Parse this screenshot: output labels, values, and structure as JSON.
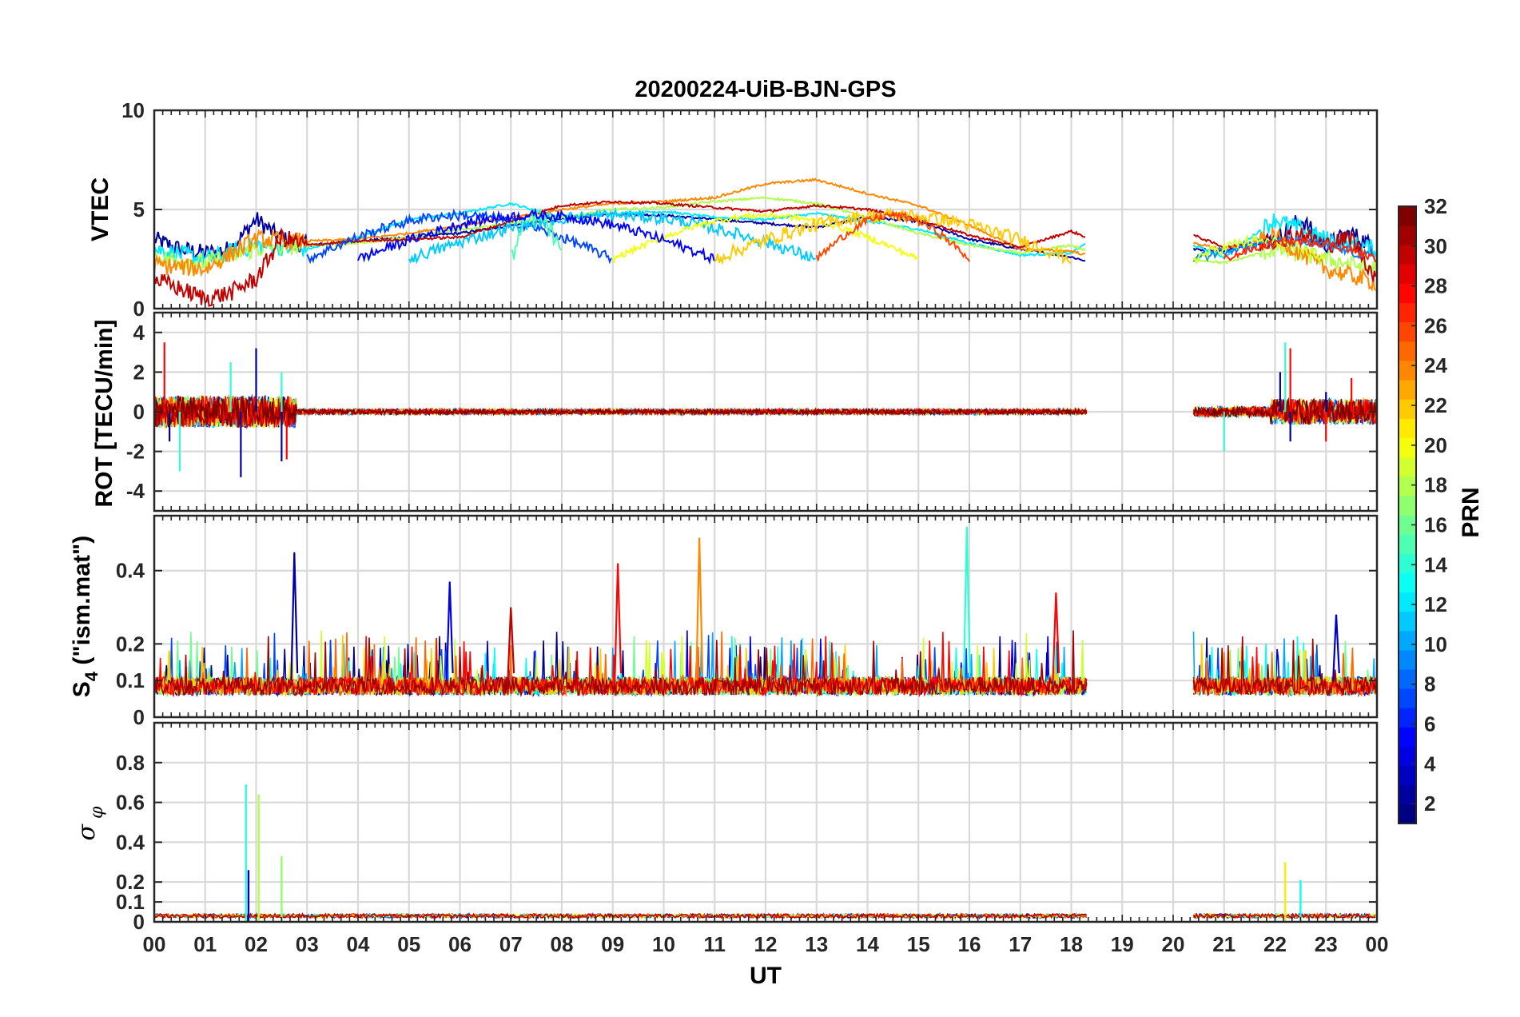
{
  "chart_data": {
    "type": "line",
    "title": "20200224-UiB-BJN-GPS",
    "xlabel": "UT",
    "x_tick_labels": [
      "00",
      "01",
      "02",
      "03",
      "04",
      "05",
      "06",
      "07",
      "08",
      "09",
      "10",
      "11",
      "12",
      "13",
      "14",
      "15",
      "16",
      "17",
      "18",
      "19",
      "20",
      "21",
      "22",
      "23",
      "00"
    ],
    "xlim_hours": [
      0,
      24
    ],
    "grid": true,
    "colorbar": {
      "label": "PRN",
      "range": [
        1,
        32
      ],
      "tick_labels": [
        "2",
        "4",
        "6",
        "8",
        "10",
        "12",
        "14",
        "16",
        "18",
        "20",
        "22",
        "24",
        "26",
        "28",
        "30",
        "32"
      ],
      "colormap": "jet"
    },
    "panels": [
      {
        "ylabel": "VTEC",
        "ylim": [
          0,
          10
        ],
        "y_tick_labels": [
          "0",
          "5",
          "10"
        ],
        "data_gap_hours": [
          18.3,
          20.4
        ],
        "representative_series": [
          {
            "name": "PRN 2",
            "x": [
              0,
              0.5,
              1,
              1.5,
              2,
              2.5,
              3,
              4,
              5,
              6,
              7,
              8,
              9,
              10,
              11,
              12,
              13,
              14,
              15,
              16,
              17,
              18,
              18.3,
              20.4,
              21,
              22,
              22.5,
              23,
              23.5,
              24
            ],
            "y": [
              3.5,
              3.0,
              2.8,
              3.0,
              4.5,
              3.5,
              3.2,
              3.4,
              3.6,
              3.8,
              4.2,
              4.5,
              4.8,
              4.7,
              4.5,
              4.3,
              4.1,
              4.6,
              4.4,
              3.5,
              3.0,
              2.6,
              2.4,
              3.0,
              2.9,
              3.5,
              4.5,
              3.2,
              3.8,
              3.0
            ]
          },
          {
            "name": "PRN 12",
            "x": [
              0,
              1,
              2,
              3,
              4,
              5,
              6,
              7,
              8,
              9,
              10,
              11,
              12,
              13,
              14,
              15,
              16,
              17,
              18,
              18.3,
              20.4,
              21,
              22,
              23,
              24
            ],
            "y": [
              3.0,
              2.5,
              3.2,
              3.0,
              3.6,
              4.5,
              4.8,
              5.3,
              4.6,
              4.8,
              4.9,
              4.6,
              4.5,
              4.8,
              4.4,
              4.0,
              3.3,
              2.7,
              2.8,
              3.3,
              3.2,
              2.6,
              4.5,
              3.5,
              3.0
            ]
          },
          {
            "name": "PRN 18",
            "x": [
              0,
              1,
              2,
              3,
              4,
              5,
              6,
              7,
              8,
              9,
              10,
              11,
              12,
              13,
              14,
              15,
              16,
              17,
              18,
              18.3,
              20.4,
              21,
              22,
              23,
              24
            ],
            "y": [
              2.6,
              2.3,
              3.0,
              3.2,
              3.3,
              3.6,
              4.0,
              4.3,
              4.6,
              5.0,
              5.1,
              5.4,
              5.6,
              5.3,
              4.6,
              3.8,
              3.2,
              2.8,
              3.2,
              2.9,
              2.5,
              2.3,
              3.0,
              2.5,
              2.0
            ]
          },
          {
            "name": "PRN 24",
            "x": [
              0,
              1,
              2,
              3,
              4,
              5,
              6,
              7,
              8,
              9,
              10,
              11,
              12,
              13,
              14,
              15,
              16,
              17,
              18,
              18.3,
              20.4,
              21,
              22,
              23,
              24
            ],
            "y": [
              2.2,
              2.0,
              3.5,
              3.4,
              3.5,
              3.8,
              4.2,
              4.6,
              5.0,
              5.3,
              5.4,
              5.6,
              6.3,
              6.5,
              5.8,
              5.2,
              4.2,
              3.0,
              2.9,
              2.7,
              3.3,
              3.0,
              3.6,
              2.0,
              1.3
            ]
          },
          {
            "name": "PRN 30",
            "x": [
              0,
              0.5,
              1,
              1.5,
              2,
              2.5,
              3,
              4,
              5,
              6,
              7,
              8,
              9,
              10,
              11,
              12,
              13,
              14,
              15,
              16,
              17,
              18,
              18.3,
              20.4,
              21,
              22,
              22.5,
              23,
              23.5,
              24
            ],
            "y": [
              1.5,
              1.0,
              0.5,
              0.8,
              1.5,
              3.6,
              3.2,
              3.4,
              3.5,
              3.6,
              4.4,
              5.2,
              5.4,
              5.3,
              5.1,
              4.9,
              5.2,
              5.0,
              4.5,
              3.7,
              3.1,
              3.9,
              3.6,
              3.7,
              3.1,
              3.4,
              3.8,
              3.2,
              3.6,
              1.4
            ]
          }
        ]
      },
      {
        "ylabel": "ROT [TECU/min]",
        "ylim": [
          -5,
          5
        ],
        "y_tick_labels": [
          "-4",
          "-2",
          "0",
          "2",
          "4"
        ],
        "data_gap_hours": [
          18.3,
          20.4
        ],
        "representative_series": [
          {
            "name": "PRN 2",
            "x": [
              0,
              0.3,
              1.7,
              2.0,
              2.5,
              3,
              6,
              9,
              12,
              15,
              18.3,
              20.4,
              22.1,
              22.3,
              23,
              24
            ],
            "y": [
              0,
              -1.5,
              -3.3,
              3.2,
              -2.5,
              0,
              0,
              0,
              0,
              0,
              0,
              0,
              2.0,
              -1.5,
              1.0,
              0
            ]
          },
          {
            "name": "PRN 14",
            "x": [
              0,
              0.5,
              1.5,
              2.5,
              3,
              6,
              9,
              12,
              15,
              18.3,
              20.4,
              21,
              22.2,
              23,
              24
            ],
            "y": [
              0,
              -3.0,
              2.5,
              2.0,
              0,
              0,
              0,
              0,
              0,
              0,
              0,
              -2.0,
              3.5,
              -1.2,
              0
            ]
          },
          {
            "name": "PRN 28",
            "x": [
              0,
              0.2,
              2.6,
              3,
              5,
              9,
              12,
              15,
              18.3,
              20.4,
              22.3,
              23,
              23.5,
              24
            ],
            "y": [
              0,
              3.5,
              -2.4,
              0,
              0.5,
              0,
              0,
              0,
              0,
              0,
              3.2,
              -1.5,
              1.7,
              0
            ]
          }
        ]
      },
      {
        "ylabel": "S4 (\"ism.mat\")",
        "ylim": [
          0,
          0.55
        ],
        "y_tick_labels": [
          "0",
          "0.1",
          "0.2",
          "0.4"
        ],
        "data_gap_hours": [
          18.3,
          20.4
        ],
        "peaks": [
          {
            "hour": 2.75,
            "value": 0.45
          },
          {
            "hour": 5.8,
            "value": 0.37
          },
          {
            "hour": 7.0,
            "value": 0.3
          },
          {
            "hour": 9.1,
            "value": 0.42
          },
          {
            "hour": 10.7,
            "value": 0.49
          },
          {
            "hour": 15.95,
            "value": 0.52
          },
          {
            "hour": 17.7,
            "value": 0.34
          },
          {
            "hour": 23.2,
            "value": 0.28
          }
        ],
        "baseline": 0.06
      },
      {
        "ylabel": "σ φ",
        "ylim": [
          0,
          1.0
        ],
        "y_tick_labels": [
          "0",
          "0.1",
          "0.2",
          "0.4",
          "0.6",
          "0.8"
        ],
        "data_gap_hours": [
          18.3,
          20.4
        ],
        "peaks": [
          {
            "hour": 1.8,
            "value": 0.69
          },
          {
            "hour": 2.05,
            "value": 0.64
          },
          {
            "hour": 2.5,
            "value": 0.33
          },
          {
            "hour": 1.85,
            "value": 0.26
          },
          {
            "hour": 22.2,
            "value": 0.3
          },
          {
            "hour": 22.5,
            "value": 0.21
          }
        ],
        "baseline": 0.02
      }
    ]
  }
}
